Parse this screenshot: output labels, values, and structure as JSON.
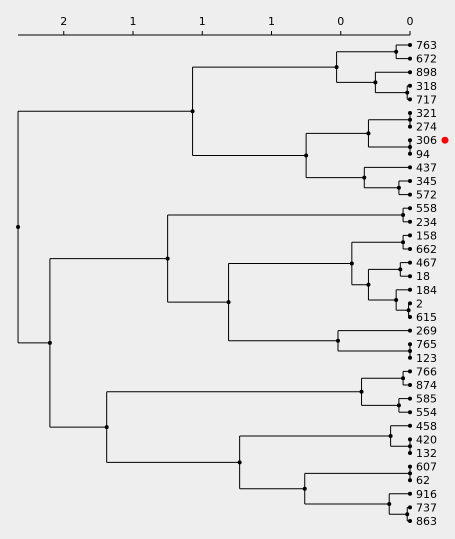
{
  "chart_data": {
    "type": "dendrogram",
    "orientation": "horizontal",
    "axis": {
      "ticks": [
        {
          "value": 2.5,
          "label": "2"
        },
        {
          "value": 2.0,
          "label": "1"
        },
        {
          "value": 1.5,
          "label": "1"
        },
        {
          "value": 1.0,
          "label": "1"
        },
        {
          "value": 0.5,
          "label": "0"
        },
        {
          "value": 0.0,
          "label": "0"
        }
      ],
      "xlim": [
        2.83,
        0
      ]
    },
    "leaves": [
      "763",
      "672",
      "898",
      "318",
      "717",
      "321",
      "274",
      "306",
      "94",
      "437",
      "345",
      "572",
      "558",
      "234",
      "158",
      "662",
      "467",
      "18",
      "184",
      "2",
      "615",
      "269",
      "765",
      "123",
      "766",
      "874",
      "585",
      "554",
      "458",
      "420",
      "132",
      "607",
      "62",
      "916",
      "737",
      "863"
    ],
    "highlighted_leaf": "306",
    "marker_color": "#ff0000",
    "tree": {
      "h": 2.83,
      "c": [
        {
          "h": 1.57,
          "c": [
            {
              "h": 0.53,
              "c": [
                {
                  "h": 0.1,
                  "c": [
                    {
                      "l": "763"
                    },
                    {
                      "l": "672"
                    }
                  ]
                },
                {
                  "h": 0.25,
                  "c": [
                    {
                      "l": "898"
                    },
                    {
                      "h": 0.02,
                      "c": [
                        {
                          "l": "318"
                        },
                        {
                          "l": "717"
                        }
                      ]
                    }
                  ]
                }
              ]
            },
            {
              "h": 0.75,
              "c": [
                {
                  "h": 0.3,
                  "c": [
                    {
                      "h": 0.0,
                      "c": [
                        {
                          "l": "321"
                        },
                        {
                          "l": "274"
                        }
                      ]
                    },
                    {
                      "h": 0.0,
                      "c": [
                        {
                          "l": "306"
                        },
                        {
                          "l": "94"
                        }
                      ]
                    }
                  ]
                },
                {
                  "h": 0.33,
                  "c": [
                    {
                      "l": "437"
                    },
                    {
                      "h": 0.08,
                      "c": [
                        {
                          "l": "345"
                        },
                        {
                          "l": "572"
                        }
                      ]
                    }
                  ]
                }
              ]
            }
          ]
        },
        {
          "h": 2.6,
          "c": [
            {
              "h": 1.75,
              "c": [
                {
                  "h": 0.05,
                  "c": [
                    {
                      "l": "558"
                    },
                    {
                      "l": "234"
                    }
                  ]
                },
                {
                  "h": 1.31,
                  "c": [
                    {
                      "h": 0.42,
                      "c": [
                        {
                          "h": 0.05,
                          "c": [
                            {
                              "l": "158"
                            },
                            {
                              "l": "662"
                            }
                          ]
                        },
                        {
                          "h": 0.3,
                          "c": [
                            {
                              "h": 0.07,
                              "c": [
                                {
                                  "l": "467"
                                },
                                {
                                  "l": "18"
                                }
                              ]
                            },
                            {
                              "h": 0.1,
                              "c": [
                                {
                                  "l": "184"
                                },
                                {
                                  "h": 0.01,
                                  "c": [
                                    {
                                      "l": "2"
                                    },
                                    {
                                      "l": "615"
                                    }
                                  ]
                                }
                              ]
                            }
                          ]
                        }
                      ]
                    },
                    {
                      "h": 0.52,
                      "c": [
                        {
                          "l": "269"
                        },
                        {
                          "h": 0.0,
                          "c": [
                            {
                              "l": "765"
                            },
                            {
                              "l": "123"
                            }
                          ]
                        }
                      ]
                    }
                  ]
                }
              ]
            },
            {
              "h": 2.19,
              "c": [
                {
                  "h": 0.35,
                  "c": [
                    {
                      "h": 0.05,
                      "c": [
                        {
                          "l": "766"
                        },
                        {
                          "l": "874"
                        }
                      ]
                    },
                    {
                      "h": 0.08,
                      "c": [
                        {
                          "l": "585"
                        },
                        {
                          "l": "554"
                        }
                      ]
                    }
                  ]
                },
                {
                  "h": 1.23,
                  "c": [
                    {
                      "h": 0.14,
                      "c": [
                        {
                          "l": "458"
                        },
                        {
                          "h": 0.0,
                          "c": [
                            {
                              "l": "420"
                            },
                            {
                              "l": "132"
                            }
                          ]
                        }
                      ]
                    },
                    {
                      "h": 0.76,
                      "c": [
                        {
                          "h": 0.0,
                          "c": [
                            {
                              "l": "607"
                            },
                            {
                              "l": "62"
                            }
                          ]
                        },
                        {
                          "h": 0.15,
                          "c": [
                            {
                              "l": "916"
                            },
                            {
                              "h": 0.02,
                              "c": [
                                {
                                  "l": "737"
                                },
                                {
                                  "l": "863"
                                }
                              ]
                            }
                          ]
                        }
                      ]
                    }
                  ]
                }
              ]
            }
          ]
        }
      ]
    }
  }
}
